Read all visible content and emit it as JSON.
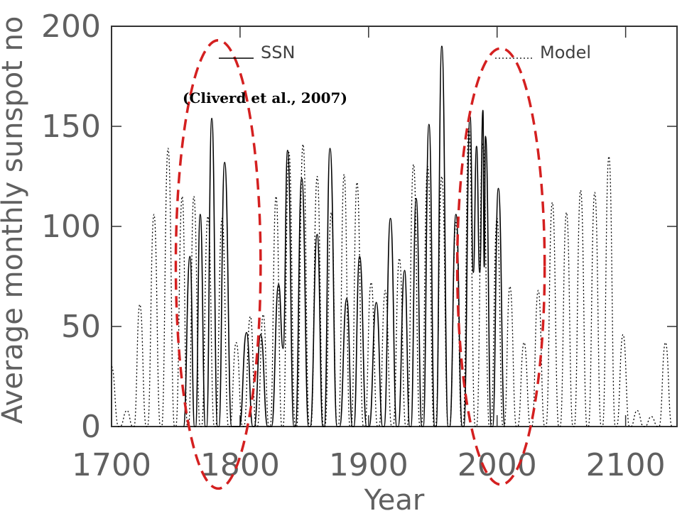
{
  "chart_data": {
    "type": "line",
    "xlabel": "Year",
    "ylabel": "Average monthly sunspot no",
    "xlim": [
      1700,
      2140
    ],
    "ylim": [
      0,
      200
    ],
    "xticks": [
      1700,
      1800,
      1900,
      2000,
      2100
    ],
    "yticks": [
      0,
      50,
      100,
      150,
      200
    ],
    "xtick_labels": [
      "1700",
      "1800",
      "1900",
      "2000",
      "2100"
    ],
    "ytick_labels": [
      "0",
      "50",
      "100",
      "150",
      "200"
    ],
    "legend": [
      {
        "label": "SSN",
        "style": "solid"
      },
      {
        "label": "Model",
        "style": "dotted"
      }
    ],
    "annotation": "(Cliverd et al., 2007)",
    "highlight_color": "#d42020",
    "series": [
      {
        "name": "SSN",
        "style": "solid",
        "peaks": [
          {
            "x": 1761,
            "y": 85
          },
          {
            "x": 1769,
            "y": 106
          },
          {
            "x": 1778,
            "y": 154
          },
          {
            "x": 1788,
            "y": 132
          },
          {
            "x": 1805,
            "y": 47
          },
          {
            "x": 1816,
            "y": 46
          },
          {
            "x": 1830,
            "y": 71
          },
          {
            "x": 1837,
            "y": 138
          },
          {
            "x": 1848,
            "y": 124
          },
          {
            "x": 1860,
            "y": 96
          },
          {
            "x": 1870,
            "y": 139
          },
          {
            "x": 1883,
            "y": 64
          },
          {
            "x": 1893,
            "y": 85
          },
          {
            "x": 1906,
            "y": 62
          },
          {
            "x": 1917,
            "y": 104
          },
          {
            "x": 1928,
            "y": 78
          },
          {
            "x": 1937,
            "y": 114
          },
          {
            "x": 1947,
            "y": 151
          },
          {
            "x": 1957,
            "y": 190
          },
          {
            "x": 1968,
            "y": 106
          },
          {
            "x": 1979,
            "y": 155
          },
          {
            "x": 1984,
            "y": 140
          },
          {
            "x": 1989,
            "y": 158
          },
          {
            "x": 1991,
            "y": 145
          },
          {
            "x": 2001,
            "y": 119
          }
        ]
      },
      {
        "name": "Model",
        "style": "dotted",
        "peaks": [
          {
            "x": 1700,
            "y": 30
          },
          {
            "x": 1712,
            "y": 8
          },
          {
            "x": 1722,
            "y": 61
          },
          {
            "x": 1733,
            "y": 106
          },
          {
            "x": 1744,
            "y": 139
          },
          {
            "x": 1755,
            "y": 115
          },
          {
            "x": 1764,
            "y": 115
          },
          {
            "x": 1775,
            "y": 105
          },
          {
            "x": 1786,
            "y": 104
          },
          {
            "x": 1797,
            "y": 42
          },
          {
            "x": 1808,
            "y": 55
          },
          {
            "x": 1818,
            "y": 56
          },
          {
            "x": 1828,
            "y": 115
          },
          {
            "x": 1838,
            "y": 137
          },
          {
            "x": 1849,
            "y": 141
          },
          {
            "x": 1860,
            "y": 125
          },
          {
            "x": 1871,
            "y": 107
          },
          {
            "x": 1881,
            "y": 126
          },
          {
            "x": 1891,
            "y": 122
          },
          {
            "x": 1902,
            "y": 72
          },
          {
            "x": 1913,
            "y": 68
          },
          {
            "x": 1924,
            "y": 84
          },
          {
            "x": 1935,
            "y": 131
          },
          {
            "x": 1946,
            "y": 130
          },
          {
            "x": 1957,
            "y": 125
          },
          {
            "x": 1968,
            "y": 102
          },
          {
            "x": 1978,
            "y": 149
          },
          {
            "x": 1989,
            "y": 142
          },
          {
            "x": 2000,
            "y": 104
          },
          {
            "x": 2010,
            "y": 70
          },
          {
            "x": 2021,
            "y": 42
          },
          {
            "x": 2032,
            "y": 68
          },
          {
            "x": 2043,
            "y": 112
          },
          {
            "x": 2054,
            "y": 107
          },
          {
            "x": 2065,
            "y": 118
          },
          {
            "x": 2076,
            "y": 117
          },
          {
            "x": 2087,
            "y": 135
          },
          {
            "x": 2098,
            "y": 46
          },
          {
            "x": 2109,
            "y": 8
          },
          {
            "x": 2120,
            "y": 5
          },
          {
            "x": 2131,
            "y": 42
          }
        ]
      }
    ],
    "highlights": [
      {
        "center_x": 1783,
        "center_y": 81,
        "radius_x": 33,
        "radius_y": 112
      },
      {
        "center_x": 2003,
        "center_y": 80,
        "radius_x": 34,
        "radius_y": 109
      }
    ]
  }
}
